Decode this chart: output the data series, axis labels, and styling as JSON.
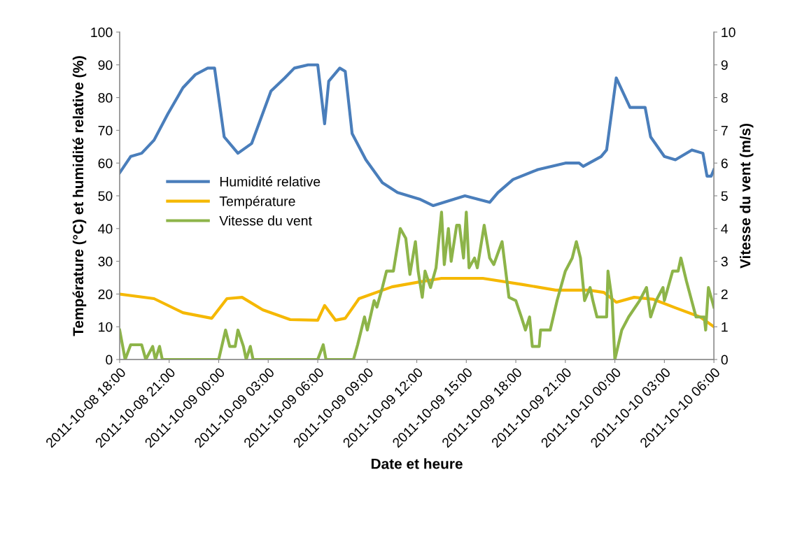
{
  "chart_data": {
    "type": "line",
    "xlabel": "Date et heure",
    "ylabel": "Température (°C) et humidité relative (%)",
    "y2label": "Vitesse du vent (m/s)",
    "legend": "left",
    "xlim": [
      "2011-10-08T18:00",
      "2011-10-10T06:00"
    ],
    "xticks": [
      {
        "value": "2011-10-08T18:00",
        "label": "2011-10-08 18:00"
      },
      {
        "value": "2011-10-08T21:00",
        "label": "2011-10-08 21:00"
      },
      {
        "value": "2011-10-09T00:00",
        "label": "2011-10-09 00:00"
      },
      {
        "value": "2011-10-09T03:00",
        "label": "2011-10-09 03:00"
      },
      {
        "value": "2011-10-09T06:00",
        "label": "2011-10-09 06:00"
      },
      {
        "value": "2011-10-09T09:00",
        "label": "2011-10-09 09:00"
      },
      {
        "value": "2011-10-09T12:00",
        "label": "2011-10-09 12:00"
      },
      {
        "value": "2011-10-09T15:00",
        "label": "2011-10-09 15:00"
      },
      {
        "value": "2011-10-09T18:00",
        "label": "2011-10-09 18:00"
      },
      {
        "value": "2011-10-09T21:00",
        "label": "2011-10-09 21:00"
      },
      {
        "value": "2011-10-10T00:00",
        "label": "2011-10-10 00:00"
      },
      {
        "value": "2011-10-10T03:00",
        "label": "2011-10-10 03:00"
      },
      {
        "value": "2011-10-10T06:00",
        "label": "2011-10-10 06:00"
      }
    ],
    "ylim": [
      0,
      100
    ],
    "yticks": [
      0,
      10,
      20,
      30,
      40,
      50,
      60,
      70,
      80,
      90,
      100
    ],
    "y2lim": [
      0,
      10
    ],
    "y2ticks": [
      0,
      1,
      2,
      3,
      4,
      5,
      6,
      7,
      8,
      9,
      10
    ],
    "series": [
      {
        "name": "Humidité relative",
        "color": "#4a7ebb",
        "x": [
          "2011-10-08T18:00",
          "2011-10-08T18:40",
          "2011-10-08T19:20",
          "2011-10-08T20:05",
          "2011-10-08T20:55",
          "2011-10-08T21:50",
          "2011-10-08T22:35",
          "2011-10-08T23:20",
          "2011-10-08T23:45",
          "2011-10-09T00:20",
          "2011-10-09T01:10",
          "2011-10-09T02:00",
          "2011-10-09T03:10",
          "2011-10-09T04:00",
          "2011-10-09T04:35",
          "2011-10-09T05:25",
          "2011-10-09T06:00",
          "2011-10-09T06:25",
          "2011-10-09T06:40",
          "2011-10-09T07:20",
          "2011-10-09T07:40",
          "2011-10-09T08:05",
          "2011-10-09T08:55",
          "2011-10-09T09:55",
          "2011-10-09T10:50",
          "2011-10-09T12:10",
          "2011-10-09T13:00",
          "2011-10-09T14:55",
          "2011-10-09T16:25",
          "2011-10-09T16:55",
          "2011-10-09T17:50",
          "2011-10-09T19:20",
          "2011-10-09T21:00",
          "2011-10-09T21:50",
          "2011-10-09T22:05",
          "2011-10-09T23:10",
          "2011-10-09T23:30",
          "2011-10-10T00:05",
          "2011-10-10T00:55",
          "2011-10-10T01:50",
          "2011-10-10T02:10",
          "2011-10-10T03:00",
          "2011-10-10T03:40",
          "2011-10-10T04:40",
          "2011-10-10T05:20",
          "2011-10-10T05:35",
          "2011-10-10T05:50",
          "2011-10-10T06:00"
        ],
        "values": [
          57,
          62,
          63,
          67,
          75,
          83,
          87,
          89,
          89,
          68,
          63,
          66,
          82,
          86,
          89,
          90,
          90,
          72,
          85,
          89,
          88,
          69,
          61,
          54,
          51,
          49,
          47,
          50,
          48,
          51,
          55,
          58,
          60,
          60,
          59,
          62,
          64,
          86,
          77,
          77,
          68,
          62,
          61,
          64,
          63,
          56,
          56,
          58
        ]
      },
      {
        "name": "Température",
        "color": "#f5b800",
        "x": [
          "2011-10-08T18:00",
          "2011-10-08T20:05",
          "2011-10-08T21:50",
          "2011-10-08T23:35",
          "2011-10-09T00:30",
          "2011-10-09T01:25",
          "2011-10-09T02:40",
          "2011-10-09T04:20",
          "2011-10-09T06:00",
          "2011-10-09T06:25",
          "2011-10-09T07:05",
          "2011-10-09T07:40",
          "2011-10-09T08:30",
          "2011-10-09T10:30",
          "2011-10-09T12:10",
          "2011-10-09T13:30",
          "2011-10-09T16:00",
          "2011-10-09T18:25",
          "2011-10-09T20:25",
          "2011-10-09T22:25",
          "2011-10-09T23:20",
          "2011-10-10T00:05",
          "2011-10-10T01:10",
          "2011-10-10T02:20",
          "2011-10-10T03:40",
          "2011-10-10T05:10",
          "2011-10-10T06:00"
        ],
        "values": [
          20,
          18.6,
          14.3,
          12.6,
          18.6,
          19,
          15.2,
          12.2,
          12,
          16.5,
          12,
          12.6,
          18.6,
          22.2,
          23.7,
          24.8,
          24.8,
          22.9,
          21.2,
          21.2,
          20.5,
          17.5,
          19,
          18.4,
          15.8,
          13,
          10
        ]
      },
      {
        "name": "Vitesse du vent",
        "color": "#8db449",
        "axis": "y2",
        "x": [
          "2011-10-08T18:00",
          "2011-10-08T18:20",
          "2011-10-08T18:40",
          "2011-10-08T19:20",
          "2011-10-08T19:35",
          "2011-10-08T20:00",
          "2011-10-08T20:10",
          "2011-10-08T20:25",
          "2011-10-08T20:35",
          "2011-10-09T00:00",
          "2011-10-09T00:25",
          "2011-10-09T00:40",
          "2011-10-09T01:00",
          "2011-10-09T01:10",
          "2011-10-09T01:30",
          "2011-10-09T01:40",
          "2011-10-09T01:55",
          "2011-10-09T02:05",
          "2011-10-09T06:00",
          "2011-10-09T06:20",
          "2011-10-09T06:30",
          "2011-10-09T08:10",
          "2011-10-09T08:25",
          "2011-10-09T08:50",
          "2011-10-09T09:00",
          "2011-10-09T09:25",
          "2011-10-09T09:35",
          "2011-10-09T09:55",
          "2011-10-09T10:10",
          "2011-10-09T10:35",
          "2011-10-09T11:00",
          "2011-10-09T11:20",
          "2011-10-09T11:35",
          "2011-10-09T11:55",
          "2011-10-09T12:05",
          "2011-10-09T12:20",
          "2011-10-09T12:30",
          "2011-10-09T12:50",
          "2011-10-09T13:10",
          "2011-10-09T13:30",
          "2011-10-09T13:40",
          "2011-10-09T13:55",
          "2011-10-09T14:05",
          "2011-10-09T14:25",
          "2011-10-09T14:35",
          "2011-10-09T14:50",
          "2011-10-09T15:00",
          "2011-10-09T15:10",
          "2011-10-09T15:30",
          "2011-10-09T15:40",
          "2011-10-09T16:05",
          "2011-10-09T16:25",
          "2011-10-09T16:40",
          "2011-10-09T17:10",
          "2011-10-09T17:35",
          "2011-10-09T18:00",
          "2011-10-09T18:20",
          "2011-10-09T18:35",
          "2011-10-09T18:50",
          "2011-10-09T19:00",
          "2011-10-09T19:25",
          "2011-10-09T19:30",
          "2011-10-09T20:05",
          "2011-10-09T20:30",
          "2011-10-09T21:00",
          "2011-10-09T21:25",
          "2011-10-09T21:40",
          "2011-10-09T21:55",
          "2011-10-09T22:10",
          "2011-10-09T22:30",
          "2011-10-09T22:40",
          "2011-10-09T22:55",
          "2011-10-09T23:30",
          "2011-10-09T23:35",
          "2011-10-09T23:50",
          "2011-10-10T00:00",
          "2011-10-10T00:25",
          "2011-10-10T00:50",
          "2011-10-10T01:30",
          "2011-10-10T01:55",
          "2011-10-10T02:10",
          "2011-10-10T02:30",
          "2011-10-10T02:55",
          "2011-10-10T03:00",
          "2011-10-10T03:30",
          "2011-10-10T03:50",
          "2011-10-10T04:00",
          "2011-10-10T04:20",
          "2011-10-10T04:55",
          "2011-10-10T05:25",
          "2011-10-10T05:30",
          "2011-10-10T05:40",
          "2011-10-10T06:00"
        ],
        "values": [
          0.9,
          0,
          0.45,
          0.45,
          0,
          0.4,
          0,
          0.4,
          0,
          0,
          0.9,
          0.4,
          0.4,
          0.9,
          0.4,
          0,
          0.4,
          0,
          0,
          0.45,
          0,
          0,
          0.45,
          1.3,
          0.9,
          1.8,
          1.6,
          2.2,
          2.7,
          2.7,
          4.0,
          3.7,
          2.6,
          3.6,
          2.7,
          1.9,
          2.7,
          2.2,
          2.8,
          4.5,
          2.9,
          4.0,
          3.0,
          4.1,
          4.1,
          3.1,
          4.5,
          2.8,
          3.1,
          2.8,
          4.1,
          3.1,
          2.9,
          3.6,
          1.9,
          1.8,
          1.3,
          0.9,
          1.3,
          0.4,
          0.4,
          0.9,
          0.9,
          1.8,
          2.7,
          3.1,
          3.6,
          3.1,
          1.8,
          2.2,
          1.8,
          1.3,
          1.3,
          2.7,
          1.8,
          0,
          0.9,
          1.3,
          1.8,
          2.2,
          1.3,
          1.8,
          2.2,
          1.8,
          2.7,
          2.7,
          3.1,
          2.4,
          1.3,
          1.3,
          0.9,
          2.2,
          1.6
        ]
      }
    ]
  }
}
